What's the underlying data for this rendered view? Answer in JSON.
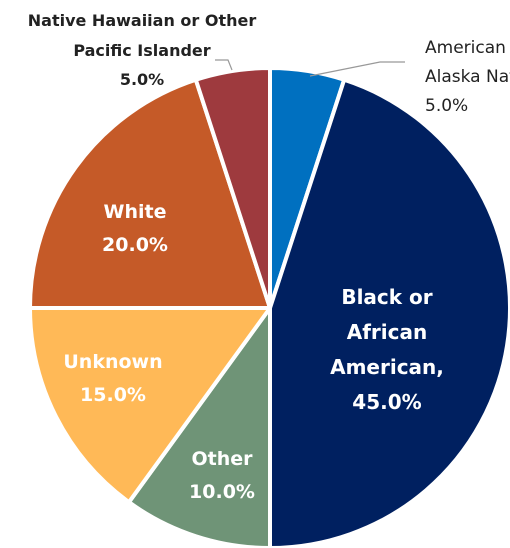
{
  "chart_data": {
    "type": "pie",
    "categories": [
      "American Indian or Alaska Native",
      "Black or African American,",
      "Other",
      "Unknown",
      "White",
      "Native Hawaiian or Other Pacific Islander"
    ],
    "values": [
      5,
      45,
      10,
      15,
      20,
      5
    ],
    "value_labels": [
      "5.0%",
      "45.0%",
      "10.0%",
      "15.0%",
      "20.0%",
      "5.0%"
    ],
    "colors": [
      "#0070c0",
      "#002060",
      "#6f9477",
      "#ffb957",
      "#c55a28",
      "#9e3a3e"
    ]
  }
}
